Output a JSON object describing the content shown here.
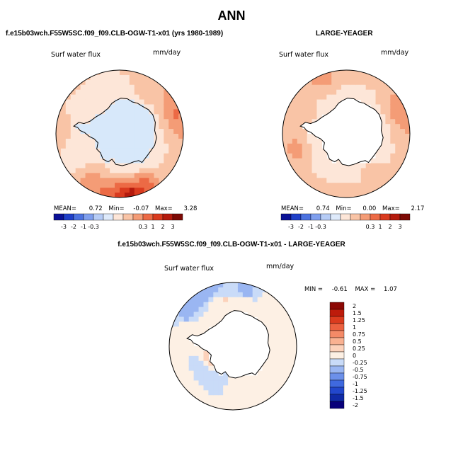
{
  "page": {
    "title": "ANN",
    "panel_a_title": "f.e15b03wch.F55W5SC.f09_f09.CLB-OGW-T1-x01 (yrs 1980-1989)",
    "panel_b_title": "LARGE-YEAGER",
    "diff_title": "f.e15b03wch.F55W5SC.f09_f09.CLB-OGW-T1-x01 - LARGE-YEAGER"
  },
  "colors": {
    "top_scale": [
      "#0a1196",
      "#1f3fc8",
      "#4c72e0",
      "#7f9fee",
      "#b6ccf6",
      "#deeafb",
      "#fde6d8",
      "#f9c4a6",
      "#f49c76",
      "#ec6a45",
      "#d93a1e",
      "#b41a0d",
      "#7d0a05"
    ],
    "diff_scale": [
      "#08007a",
      "#102aa6",
      "#2247cc",
      "#3f69df",
      "#6c90ea",
      "#9ab6f2",
      "#c9dbf8",
      "#fdf0e4",
      "#fcd2bb",
      "#f9b191",
      "#f48a67",
      "#ec6140",
      "#db3b1e",
      "#bd1b0b",
      "#8c0804"
    ],
    "land": "#ffffff",
    "coast": "#000000"
  },
  "chart_data": [
    {
      "type": "heatmap",
      "name": "panel-model",
      "projection": "south-polar-stereographic",
      "label": "Surf water flux",
      "units": "mm/day",
      "mean_label": "MEAN=",
      "mean": "0.72",
      "min_label": "Min=",
      "min": "-0.07",
      "max_label": "Max=",
      "max": "3.28",
      "colorbar_ticks": [
        "-3",
        "-2",
        "-1",
        "-0.3",
        "0.3",
        "1",
        "2",
        "3"
      ],
      "antarctica_value": 0.1,
      "seed": 11,
      "boost_sectors": [
        {
          "angle_deg": 100,
          "value": 2.8
        },
        {
          "angle_deg": 200,
          "value": 1.6
        }
      ]
    },
    {
      "type": "heatmap",
      "name": "panel-obs",
      "projection": "south-polar-stereographic",
      "label": "Surf water flux",
      "units": "mm/day",
      "mean_label": "MEAN=",
      "mean": "0.74",
      "min_label": "Min=",
      "min": "0.00",
      "max_label": "Max=",
      "max": "2.17",
      "colorbar_ticks": [
        "-3",
        "-2",
        "-1",
        "-0.3",
        "0.3",
        "1",
        "2",
        "3"
      ],
      "antarctica_value": null,
      "seed": 23,
      "boost_sectors": [
        {
          "angle_deg": 200,
          "value": 1.4
        }
      ]
    },
    {
      "type": "heatmap",
      "name": "panel-diff",
      "projection": "south-polar-stereographic",
      "label": "Surf water flux",
      "units": "mm/day",
      "min_label": "MIN =",
      "min": "-0.61",
      "max_label": "MAX =",
      "max": "1.07",
      "legend_levels": [
        "2",
        "1.5",
        "1.25",
        "1",
        "0.75",
        "0.5",
        "0.25",
        "0",
        "-0.25",
        "-0.5",
        "-0.75",
        "-1",
        "-1.25",
        "-1.5",
        "-2"
      ],
      "antarctica_value": null,
      "seed": 37,
      "boost_sectors": [
        {
          "angle_deg": 315,
          "value": -0.4
        }
      ]
    }
  ]
}
